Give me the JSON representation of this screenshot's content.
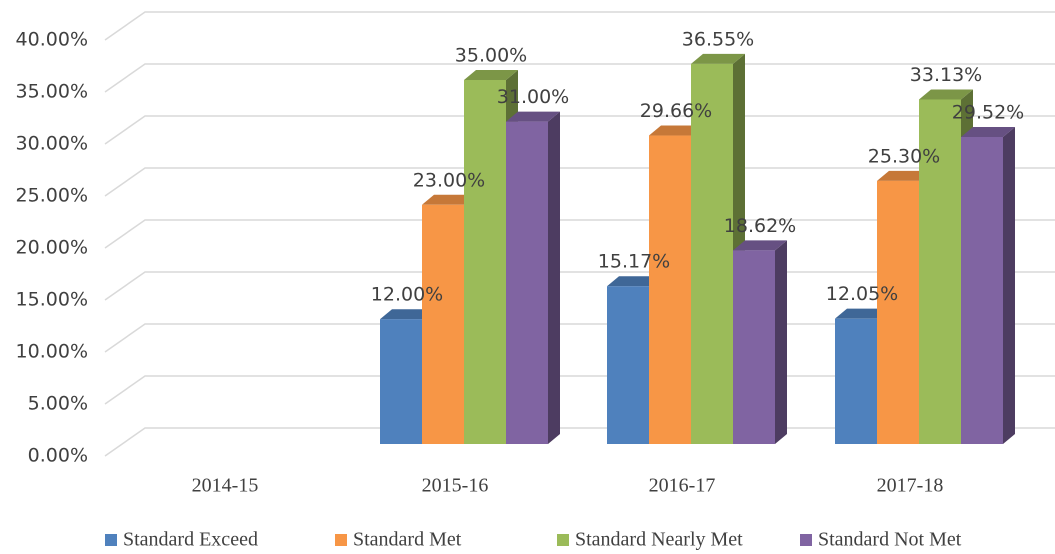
{
  "chart_data": {
    "type": "bar3d",
    "categories": [
      "2014-15",
      "2015-16",
      "2016-17",
      "2017-18"
    ],
    "series": [
      {
        "name": "Standard Exceed",
        "color": "#4f81bd",
        "values": [
          null,
          12,
          15.17,
          12.05
        ],
        "value_labels": [
          null,
          "12.00%",
          "15.17%",
          "12.05%"
        ]
      },
      {
        "name": "Standard Met",
        "color": "#f79646",
        "values": [
          null,
          23,
          29.66,
          25.3
        ],
        "value_labels": [
          null,
          "23.00%",
          "29.66%",
          "25.30%"
        ]
      },
      {
        "name": "Standard Nearly Met",
        "color": "#9bbb59",
        "values": [
          null,
          35,
          36.55,
          33.13
        ],
        "value_labels": [
          null,
          "35.00%",
          "36.55%",
          "33.13%"
        ]
      },
      {
        "name": "Standard Not Met",
        "color": "#8064a2",
        "values": [
          null,
          31,
          18.62,
          29.52
        ],
        "value_labels": [
          null,
          "31.00%",
          "18.62%",
          "29.52%"
        ]
      }
    ],
    "ylim": [
      0,
      40
    ],
    "yticks": [
      {
        "value": 0,
        "label": "0.00%"
      },
      {
        "value": 5,
        "label": "5.00%"
      },
      {
        "value": 10,
        "label": "10.00%"
      },
      {
        "value": 15,
        "label": "15.00%"
      },
      {
        "value": 20,
        "label": "20.00%"
      },
      {
        "value": 25,
        "label": "25.00%"
      },
      {
        "value": 30,
        "label": "30.00%"
      },
      {
        "value": 35,
        "label": "35.00%"
      },
      {
        "value": 40,
        "label": "40.00%"
      }
    ],
    "grid": true,
    "legend": "bottom"
  }
}
